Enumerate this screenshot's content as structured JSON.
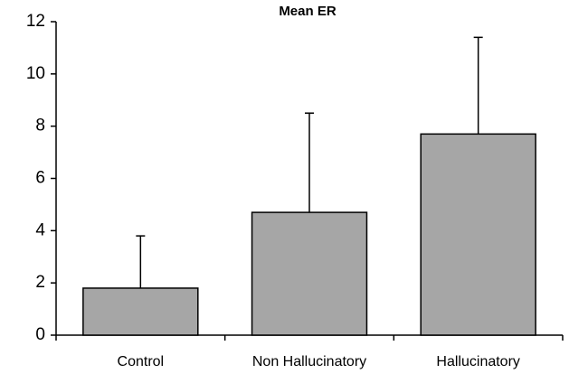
{
  "chart_data": {
    "type": "bar",
    "title": "Mean ER",
    "categories": [
      "Control",
      "Non Hallucinatory",
      "Hallucinatory"
    ],
    "values": [
      1.8,
      4.7,
      7.7
    ],
    "errors": [
      2.0,
      3.8,
      3.7
    ],
    "color": "#a6a6a6",
    "ylim": [
      0,
      12
    ],
    "yticks": [
      0,
      2,
      4,
      6,
      8,
      10,
      12
    ],
    "grid": false
  }
}
